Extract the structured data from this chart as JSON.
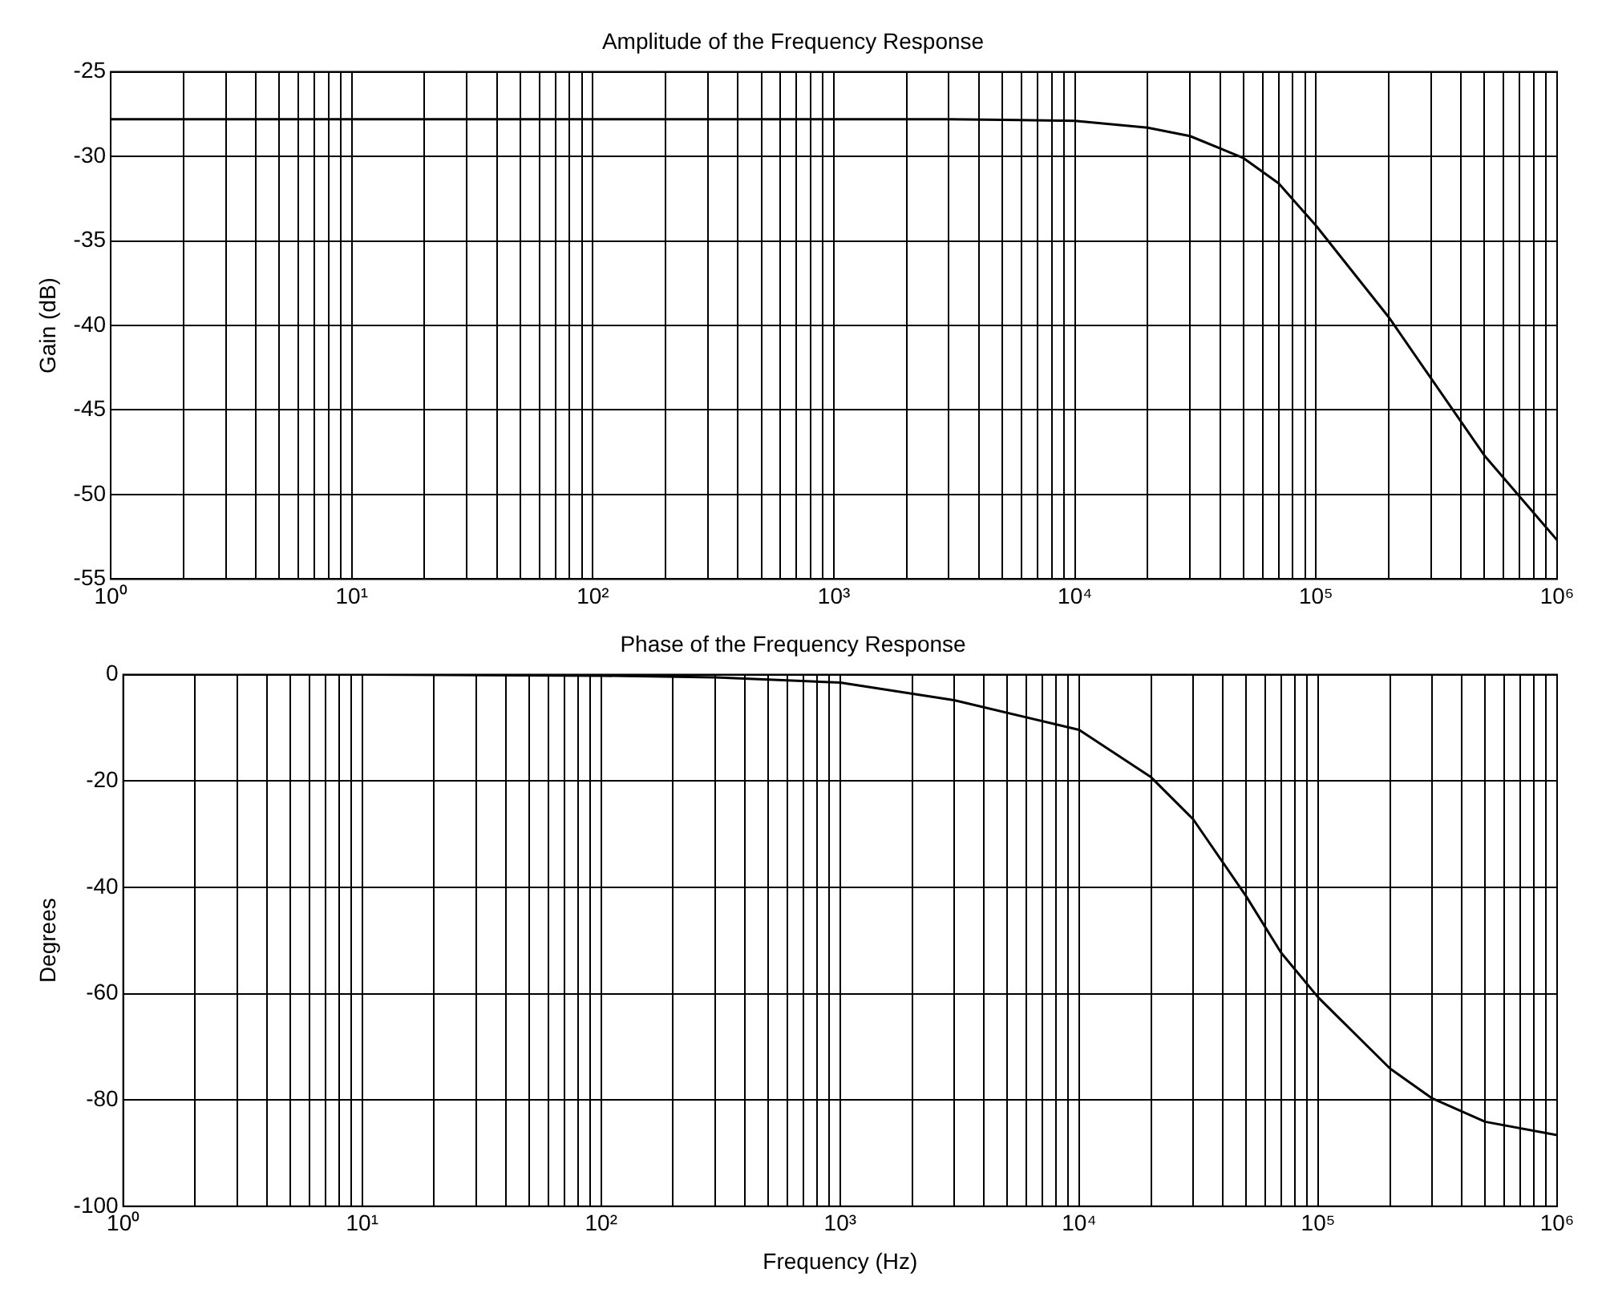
{
  "chart_data": [
    {
      "type": "line",
      "title": "Amplitude of the Frequency Response",
      "ylabel": "Gain (dB)",
      "log": "x",
      "grid": true,
      "legend": false,
      "marker": "none",
      "line_style": "solid",
      "xlim": [
        1,
        1000000
      ],
      "ylim": [
        -55,
        -25
      ],
      "yticks": [
        -55,
        -50,
        -45,
        -40,
        -35,
        -30,
        -25
      ],
      "xticks": [
        {
          "value": 1,
          "label": "10⁰"
        },
        {
          "value": 2,
          "label": null
        },
        {
          "value": 3,
          "label": null
        },
        {
          "value": 4,
          "label": null
        },
        {
          "value": 5,
          "label": null
        },
        {
          "value": 6,
          "label": null
        },
        {
          "value": 7,
          "label": null
        },
        {
          "value": 8,
          "label": null
        },
        {
          "value": 9,
          "label": null
        },
        {
          "value": 10,
          "label": "10¹"
        },
        {
          "value": 20,
          "label": null
        },
        {
          "value": 30,
          "label": null
        },
        {
          "value": 40,
          "label": null
        },
        {
          "value": 50,
          "label": null
        },
        {
          "value": 60,
          "label": null
        },
        {
          "value": 70,
          "label": null
        },
        {
          "value": 80,
          "label": null
        },
        {
          "value": 90,
          "label": null
        },
        {
          "value": 100,
          "label": "10²"
        },
        {
          "value": 200,
          "label": null
        },
        {
          "value": 300,
          "label": null
        },
        {
          "value": 400,
          "label": null
        },
        {
          "value": 500,
          "label": null
        },
        {
          "value": 600,
          "label": null
        },
        {
          "value": 700,
          "label": null
        },
        {
          "value": 800,
          "label": null
        },
        {
          "value": 900,
          "label": null
        },
        {
          "value": 1000,
          "label": "10³"
        },
        {
          "value": 2000,
          "label": null
        },
        {
          "value": 3000,
          "label": null
        },
        {
          "value": 4000,
          "label": null
        },
        {
          "value": 5000,
          "label": null
        },
        {
          "value": 6000,
          "label": null
        },
        {
          "value": 7000,
          "label": null
        },
        {
          "value": 8000,
          "label": null
        },
        {
          "value": 9000,
          "label": null
        },
        {
          "value": 10000,
          "label": "10⁴"
        },
        {
          "value": 20000,
          "label": null
        },
        {
          "value": 30000,
          "label": null
        },
        {
          "value": 40000,
          "label": null
        },
        {
          "value": 50000,
          "label": null
        },
        {
          "value": 60000,
          "label": null
        },
        {
          "value": 70000,
          "label": null
        },
        {
          "value": 80000,
          "label": null
        },
        {
          "value": 90000,
          "label": null
        },
        {
          "value": 100000,
          "label": "10⁵"
        },
        {
          "value": 200000,
          "label": null
        },
        {
          "value": 300000,
          "label": null
        },
        {
          "value": 400000,
          "label": null
        },
        {
          "value": 500000,
          "label": null
        },
        {
          "value": 600000,
          "label": null
        },
        {
          "value": 700000,
          "label": null
        },
        {
          "value": 800000,
          "label": null
        },
        {
          "value": 900000,
          "label": null
        },
        {
          "value": 1000000,
          "label": "10⁶"
        }
      ],
      "series": [
        {
          "color": "#000000",
          "x": [
            1,
            10,
            100,
            1000,
            3000,
            10000,
            20000,
            30000,
            50000,
            70000,
            100000,
            200000,
            500000,
            1000000
          ],
          "values": [
            -27.8,
            -27.8,
            -27.8,
            -27.8,
            -27.8,
            -27.9,
            -28.3,
            -28.8,
            -30.1,
            -31.6,
            -34.1,
            -39.5,
            -47.7,
            -52.7
          ]
        }
      ]
    },
    {
      "type": "line",
      "title": "Phase of the Frequency Response",
      "xlabel": "Frequency (Hz)",
      "ylabel": "Degrees",
      "log": "x",
      "grid": true,
      "legend": false,
      "marker": "none",
      "line_style": "solid",
      "xlim": [
        1,
        1000000
      ],
      "ylim": [
        -100,
        0
      ],
      "yticks": [
        -100,
        -80,
        -60,
        -40,
        -20,
        0
      ],
      "xticks": [
        {
          "value": 1,
          "label": "10⁰"
        },
        {
          "value": 2,
          "label": null
        },
        {
          "value": 3,
          "label": null
        },
        {
          "value": 4,
          "label": null
        },
        {
          "value": 5,
          "label": null
        },
        {
          "value": 6,
          "label": null
        },
        {
          "value": 7,
          "label": null
        },
        {
          "value": 8,
          "label": null
        },
        {
          "value": 9,
          "label": null
        },
        {
          "value": 10,
          "label": "10¹"
        },
        {
          "value": 20,
          "label": null
        },
        {
          "value": 30,
          "label": null
        },
        {
          "value": 40,
          "label": null
        },
        {
          "value": 50,
          "label": null
        },
        {
          "value": 60,
          "label": null
        },
        {
          "value": 70,
          "label": null
        },
        {
          "value": 80,
          "label": null
        },
        {
          "value": 90,
          "label": null
        },
        {
          "value": 100,
          "label": "10²"
        },
        {
          "value": 200,
          "label": null
        },
        {
          "value": 300,
          "label": null
        },
        {
          "value": 400,
          "label": null
        },
        {
          "value": 500,
          "label": null
        },
        {
          "value": 600,
          "label": null
        },
        {
          "value": 700,
          "label": null
        },
        {
          "value": 800,
          "label": null
        },
        {
          "value": 900,
          "label": null
        },
        {
          "value": 1000,
          "label": "10³"
        },
        {
          "value": 2000,
          "label": null
        },
        {
          "value": 3000,
          "label": null
        },
        {
          "value": 4000,
          "label": null
        },
        {
          "value": 5000,
          "label": null
        },
        {
          "value": 6000,
          "label": null
        },
        {
          "value": 7000,
          "label": null
        },
        {
          "value": 8000,
          "label": null
        },
        {
          "value": 9000,
          "label": null
        },
        {
          "value": 10000,
          "label": "10⁴"
        },
        {
          "value": 20000,
          "label": null
        },
        {
          "value": 30000,
          "label": null
        },
        {
          "value": 40000,
          "label": null
        },
        {
          "value": 50000,
          "label": null
        },
        {
          "value": 60000,
          "label": null
        },
        {
          "value": 70000,
          "label": null
        },
        {
          "value": 80000,
          "label": null
        },
        {
          "value": 90000,
          "label": null
        },
        {
          "value": 100000,
          "label": "10⁵"
        },
        {
          "value": 200000,
          "label": null
        },
        {
          "value": 300000,
          "label": null
        },
        {
          "value": 400000,
          "label": null
        },
        {
          "value": 500000,
          "label": null
        },
        {
          "value": 600000,
          "label": null
        },
        {
          "value": 700000,
          "label": null
        },
        {
          "value": 800000,
          "label": null
        },
        {
          "value": 900000,
          "label": null
        },
        {
          "value": 1000000,
          "label": "10⁶"
        }
      ],
      "series": [
        {
          "color": "#000000",
          "x": [
            1,
            10,
            100,
            300,
            1000,
            3000,
            10000,
            20000,
            30000,
            50000,
            70000,
            100000,
            200000,
            300000,
            500000,
            1000000
          ],
          "values": [
            0,
            0,
            -0.2,
            -0.5,
            -1.5,
            -4.8,
            -10.4,
            -19.3,
            -27.2,
            -41.7,
            -52.3,
            -60.7,
            -74.1,
            -79.7,
            -84.1,
            -86.6
          ]
        }
      ]
    }
  ]
}
